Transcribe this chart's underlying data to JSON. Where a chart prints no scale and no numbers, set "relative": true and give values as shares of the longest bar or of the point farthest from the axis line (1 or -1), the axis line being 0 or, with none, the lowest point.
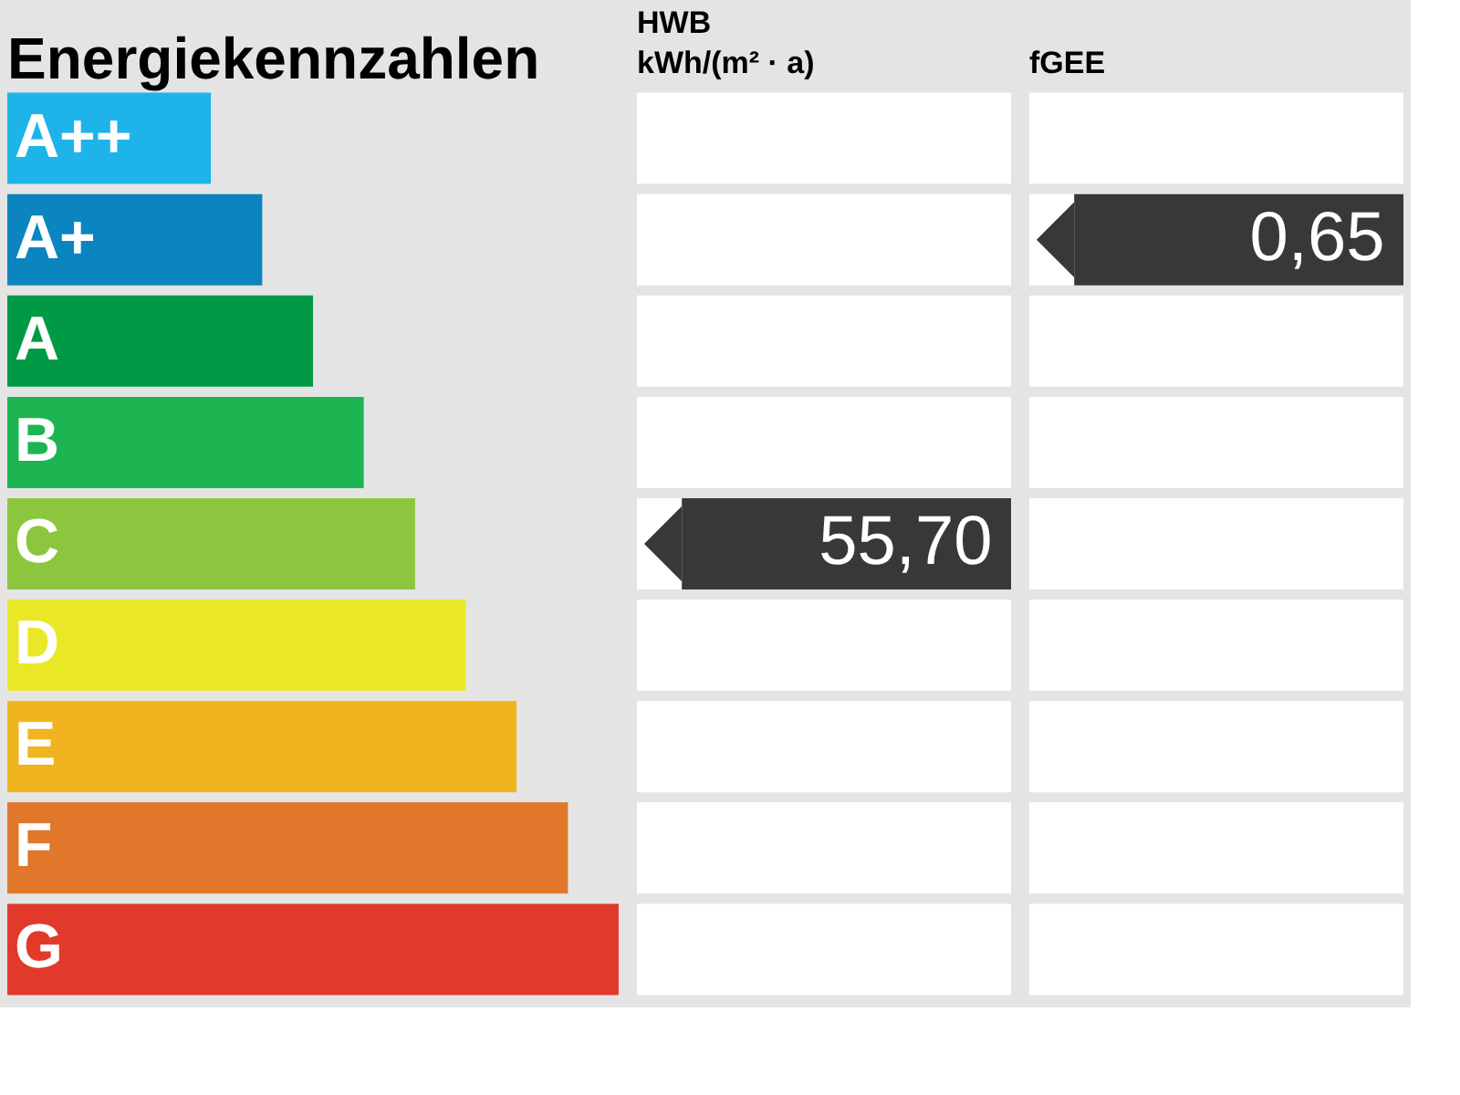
{
  "chart_data": [
    {
      "type": "bar",
      "orientation": "horizontal",
      "relative": true,
      "title": "Energiekennzahlen",
      "categories": [
        "A++",
        "A+",
        "A",
        "B",
        "C",
        "D",
        "E",
        "F",
        "G"
      ],
      "values": [
        0.333,
        0.417,
        0.5,
        0.583,
        0.667,
        0.75,
        0.833,
        0.917,
        1
      ],
      "colors": [
        "#1eb4e9",
        "#0b85c0",
        "#009a47",
        "#1db452",
        "#8cc63f",
        "#eae826",
        "#f0b41e",
        "#e0772a",
        "#e23a2a"
      ]
    },
    {
      "type": "other",
      "title": "HWB\nkWh/(m² · a)",
      "values": [
        null,
        null,
        null,
        null,
        55.7,
        null,
        null,
        null,
        null
      ],
      "value_labels": [
        null,
        null,
        null,
        null,
        "55,70",
        null,
        null,
        null,
        null
      ]
    },
    {
      "type": "other",
      "title": "fGEE",
      "values": [
        null,
        0.65,
        null,
        null,
        null,
        null,
        null,
        null,
        null
      ],
      "value_labels": [
        null,
        "0,65",
        null,
        null,
        null,
        null,
        null,
        null,
        null
      ]
    }
  ]
}
